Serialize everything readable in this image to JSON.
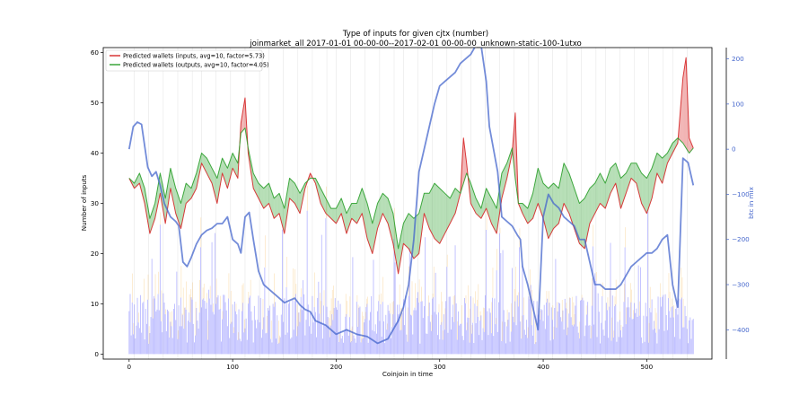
{
  "chart_data": {
    "type": "line",
    "title": "Type of inputs for given cjtx (number)",
    "subtitle": "joinmarket_all 2017-01-01 00-00-00--2017-02-01 00-00-00_unknown-static-100-1utxo",
    "xlabel": "Coinjoin in time",
    "ylabel": "Number of inputs",
    "y2label": "btc in mix",
    "xlim": [
      -25,
      563
    ],
    "ylim": [
      -1,
      61
    ],
    "y2lim": [
      -465,
      225
    ],
    "xticks": [
      "0",
      "100",
      "200",
      "300",
      "400",
      "500"
    ],
    "yticks": [
      "0",
      "10",
      "20",
      "30",
      "40",
      "50",
      "60"
    ],
    "y2ticks": [
      "200",
      "100",
      "0",
      "−100",
      "−200",
      "−300",
      "−400"
    ],
    "y2_color": "#4466cc",
    "grid": false,
    "legend_position": "top-left",
    "series": [
      {
        "name": "Predicted wallets (inputs, avg=10, factor=5.73)",
        "color": "#d62728",
        "x": [
          0,
          5,
          10,
          15,
          20,
          25,
          30,
          35,
          40,
          45,
          50,
          55,
          60,
          65,
          70,
          75,
          80,
          85,
          90,
          95,
          100,
          105,
          108,
          112,
          115,
          120,
          125,
          130,
          135,
          140,
          145,
          150,
          155,
          160,
          165,
          170,
          175,
          180,
          185,
          190,
          195,
          200,
          205,
          210,
          215,
          220,
          225,
          230,
          235,
          240,
          245,
          250,
          255,
          260,
          265,
          270,
          275,
          280,
          285,
          290,
          295,
          300,
          305,
          310,
          315,
          320,
          323,
          326,
          330,
          335,
          340,
          345,
          350,
          355,
          360,
          365,
          370,
          373,
          376,
          380,
          385,
          390,
          395,
          400,
          405,
          410,
          415,
          420,
          425,
          430,
          435,
          440,
          445,
          450,
          455,
          460,
          465,
          470,
          475,
          480,
          485,
          490,
          495,
          500,
          505,
          510,
          515,
          520,
          525,
          530,
          535,
          538,
          541,
          545
        ],
        "values": [
          35,
          33,
          34,
          30,
          24,
          27,
          32,
          26,
          33,
          28,
          25,
          30,
          31,
          33,
          38,
          36,
          34,
          30,
          36,
          33,
          37,
          35,
          46,
          51,
          40,
          33,
          31,
          29,
          30,
          27,
          28,
          24,
          31,
          30,
          28,
          33,
          36,
          34,
          30,
          28,
          27,
          26,
          28,
          24,
          27,
          26,
          28,
          23,
          20,
          25,
          28,
          26,
          22,
          16,
          22,
          21,
          19,
          20,
          28,
          25,
          23,
          22,
          24,
          26,
          28,
          32,
          43,
          38,
          30,
          28,
          27,
          29,
          26,
          24,
          31,
          35,
          40,
          48,
          30,
          28,
          26,
          27,
          30,
          27,
          23,
          25,
          26,
          30,
          28,
          25,
          22,
          21,
          26,
          28,
          30,
          29,
          32,
          34,
          29,
          32,
          35,
          34,
          30,
          28,
          31,
          36,
          34,
          38,
          40,
          42,
          55,
          59,
          43,
          41
        ]
      },
      {
        "name": "Predicted wallets (outputs, avg=10, factor=4.05)",
        "color": "#2ca02c",
        "x": [
          0,
          5,
          10,
          15,
          20,
          25,
          30,
          35,
          40,
          45,
          50,
          55,
          60,
          65,
          70,
          75,
          80,
          85,
          90,
          95,
          100,
          105,
          108,
          112,
          115,
          120,
          125,
          130,
          135,
          140,
          145,
          150,
          155,
          160,
          165,
          170,
          175,
          180,
          185,
          190,
          195,
          200,
          205,
          210,
          215,
          220,
          225,
          230,
          235,
          240,
          245,
          250,
          255,
          260,
          265,
          270,
          275,
          280,
          285,
          290,
          295,
          300,
          305,
          310,
          315,
          320,
          323,
          326,
          330,
          335,
          340,
          345,
          350,
          355,
          360,
          365,
          370,
          373,
          376,
          380,
          385,
          390,
          395,
          400,
          405,
          410,
          415,
          420,
          425,
          430,
          435,
          440,
          445,
          450,
          455,
          460,
          465,
          470,
          475,
          480,
          485,
          490,
          495,
          500,
          505,
          510,
          515,
          520,
          525,
          530,
          535,
          538,
          541,
          545
        ],
        "values": [
          35,
          34,
          36,
          33,
          27,
          30,
          36,
          31,
          37,
          33,
          30,
          34,
          33,
          36,
          40,
          39,
          37,
          35,
          39,
          37,
          40,
          38,
          44,
          45,
          41,
          36,
          34,
          33,
          34,
          31,
          32,
          29,
          35,
          34,
          32,
          34,
          35,
          35,
          33,
          31,
          29,
          29,
          31,
          28,
          30,
          30,
          33,
          30,
          26,
          30,
          32,
          31,
          28,
          21,
          26,
          28,
          27,
          28,
          32,
          32,
          34,
          33,
          32,
          31,
          33,
          32,
          34,
          36,
          34,
          31,
          29,
          33,
          31,
          29,
          36,
          38,
          41,
          35,
          30,
          30,
          29,
          32,
          37,
          34,
          33,
          34,
          33,
          38,
          36,
          33,
          30,
          31,
          33,
          34,
          36,
          34,
          37,
          38,
          35,
          36,
          38,
          38,
          36,
          35,
          37,
          40,
          39,
          40,
          42,
          43,
          42,
          41,
          40,
          41
        ]
      },
      {
        "name": "btc in mix",
        "axis": "right",
        "color": "#4466cc",
        "x": [
          0,
          4,
          8,
          12,
          18,
          22,
          26,
          30,
          34,
          40,
          45,
          48,
          52,
          56,
          60,
          65,
          70,
          75,
          80,
          85,
          90,
          95,
          100,
          105,
          108,
          112,
          116,
          120,
          125,
          130,
          135,
          140,
          145,
          150,
          155,
          160,
          165,
          170,
          175,
          180,
          190,
          200,
          210,
          220,
          230,
          240,
          250,
          255,
          260,
          265,
          270,
          275,
          280,
          285,
          290,
          295,
          300,
          305,
          310,
          315,
          320,
          325,
          330,
          335,
          340,
          345,
          348,
          352,
          356,
          360,
          365,
          370,
          375,
          378,
          380,
          385,
          390,
          395,
          400,
          405,
          410,
          415,
          420,
          425,
          430,
          435,
          440,
          445,
          450,
          455,
          460,
          465,
          470,
          475,
          480,
          485,
          490,
          495,
          500,
          505,
          510,
          515,
          520,
          525,
          530,
          535,
          540,
          545
        ],
        "values": [
          0,
          50,
          60,
          55,
          -40,
          -60,
          -50,
          -80,
          -120,
          -150,
          -160,
          -170,
          -250,
          -260,
          -240,
          -210,
          -190,
          -180,
          -175,
          -165,
          -165,
          -150,
          -200,
          -210,
          -230,
          -150,
          -140,
          -200,
          -270,
          -300,
          -310,
          -320,
          -330,
          -340,
          -335,
          -330,
          -345,
          -355,
          -360,
          -380,
          -390,
          -410,
          -400,
          -410,
          -415,
          -430,
          -420,
          -400,
          -380,
          -350,
          -300,
          -200,
          -50,
          0,
          50,
          100,
          140,
          150,
          160,
          170,
          190,
          200,
          210,
          230,
          230,
          150,
          50,
          0,
          -50,
          -150,
          -160,
          -170,
          -190,
          -200,
          -260,
          -300,
          -350,
          -400,
          -150,
          -100,
          -120,
          -130,
          -150,
          -160,
          -170,
          -200,
          -200,
          -250,
          -300,
          -300,
          -310,
          -310,
          -310,
          -300,
          -280,
          -260,
          -250,
          -240,
          -230,
          -230,
          -220,
          -200,
          -190,
          -300,
          -350,
          -20,
          -30,
          -80
        ]
      }
    ]
  }
}
